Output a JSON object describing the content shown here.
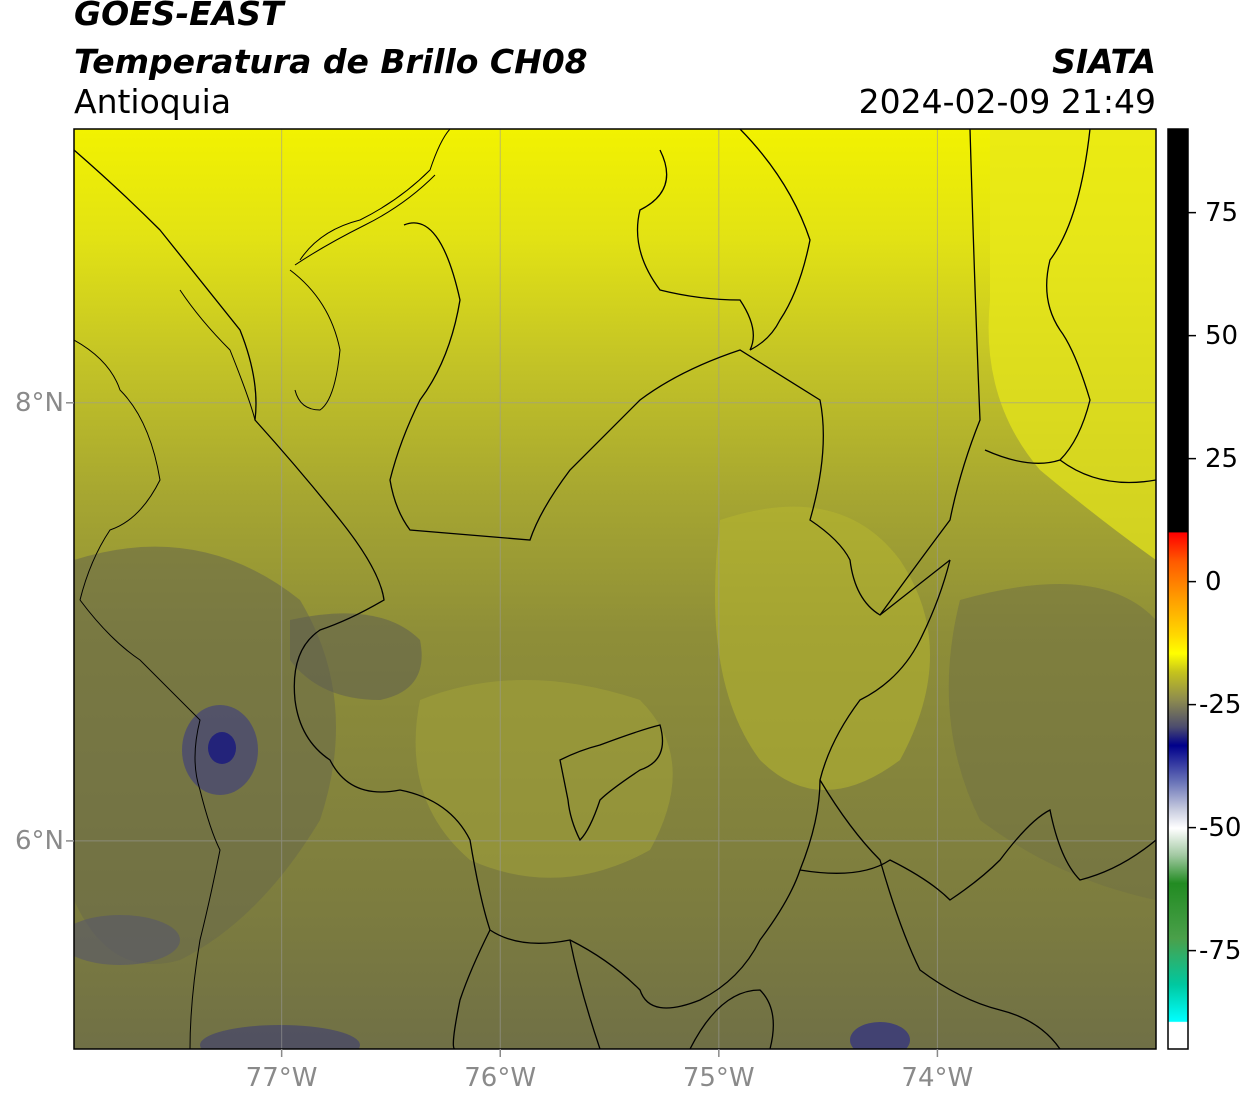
{
  "header": {
    "satellite": "GOES-EAST",
    "product": "Temperatura de Brillo CH08",
    "region": "Antioquia",
    "brand": "SIATA",
    "timestamp": "2024-02-09 21:49"
  },
  "map": {
    "lon_range": [
      -77.95,
      -73.0
    ],
    "lat_range": [
      5.05,
      9.25
    ],
    "grid": true,
    "x_ticks": [
      {
        "value": -77,
        "label": "77°W"
      },
      {
        "value": -76,
        "label": "76°W"
      },
      {
        "value": -75,
        "label": "75°W"
      },
      {
        "value": -74,
        "label": "74°W"
      }
    ],
    "y_ticks": [
      {
        "value": 8,
        "label": "8°N"
      },
      {
        "value": 6,
        "label": "6°N"
      }
    ]
  },
  "colorbar": {
    "range": [
      -95,
      92
    ],
    "ticks": [
      {
        "value": 75,
        "label": "75"
      },
      {
        "value": 50,
        "label": "50"
      },
      {
        "value": 25,
        "label": "25"
      },
      {
        "value": 0,
        "label": "0"
      },
      {
        "value": -25,
        "label": "-25"
      },
      {
        "value": -50,
        "label": "-50"
      },
      {
        "value": -75,
        "label": "-75"
      }
    ],
    "colors": {
      "black": "#000000",
      "red": "#ff0000",
      "orange": "#ff8c00",
      "yellow": "#ffff00",
      "olive": "#8a8a3a",
      "navy": "#00008b",
      "white": "#ffffff",
      "green": "#228b22",
      "cyan": "#00ffff"
    }
  }
}
